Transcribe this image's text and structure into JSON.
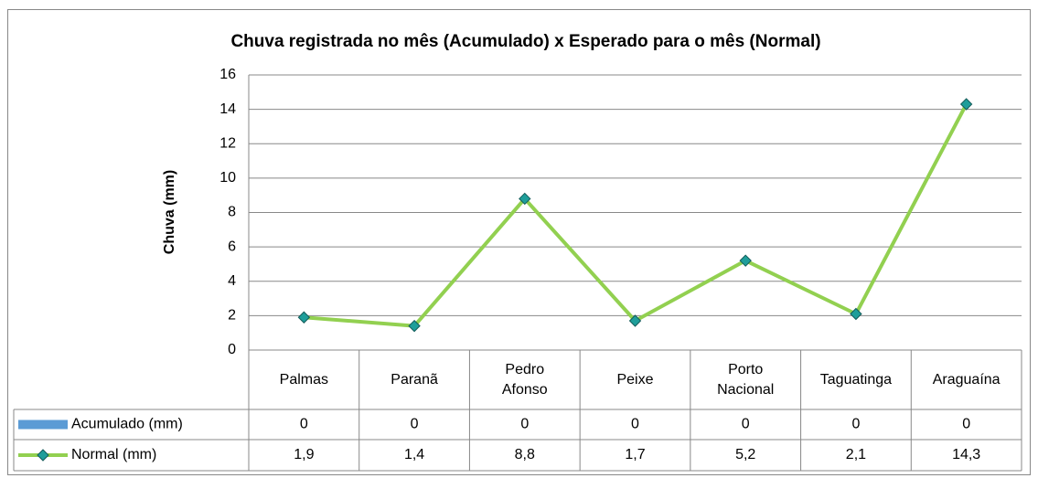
{
  "chart_data": {
    "type": "line",
    "title": "Chuva registrada  no mês (Acumulado)  x Esperado para o mês (Normal)",
    "y_label": "Chuva (mm)",
    "categories": [
      "Palmas",
      "Paranã",
      "Pedro Afonso",
      "Peixe",
      "Porto Nacional",
      "Taguatinga",
      "Araguaína"
    ],
    "series": [
      {
        "name": "Acumulado (mm)",
        "type": "bar",
        "color": "#5b9bd5",
        "values": [
          0,
          0,
          0,
          0,
          0,
          0,
          0
        ]
      },
      {
        "name": "Normal (mm)",
        "type": "line",
        "color": "#92d050",
        "marker_color": "#1f9e9a",
        "values": [
          1.9,
          1.4,
          8.8,
          1.7,
          5.2,
          2.1,
          14.3
        ],
        "value_labels": [
          "1,9",
          "1,4",
          "8,8",
          "1,7",
          "5,2",
          "2,1",
          "14,3"
        ]
      }
    ],
    "ylim": [
      0,
      16
    ],
    "yticks": [
      0,
      2,
      4,
      6,
      8,
      10,
      12,
      14,
      16
    ],
    "grid": true,
    "data_table": true
  }
}
